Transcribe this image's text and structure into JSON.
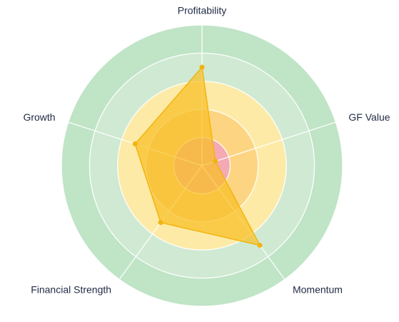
{
  "chart_data": {
    "type": "radar",
    "axes": [
      "Profitability",
      "GF Value",
      "Momentum",
      "Financial Strength",
      "Growth"
    ],
    "range": [
      0,
      10
    ],
    "rings": 5,
    "ring_colors": [
      "#f4a9b3",
      "#fdd582",
      "#fdeaa6",
      "#cfe9d3",
      "#bfe4c6"
    ],
    "series": [
      {
        "values": [
          7,
          1,
          7,
          5,
          5
        ],
        "fill": "#f8bf24",
        "fill_opacity": 0.72,
        "stroke": "#f2b410"
      }
    ]
  }
}
